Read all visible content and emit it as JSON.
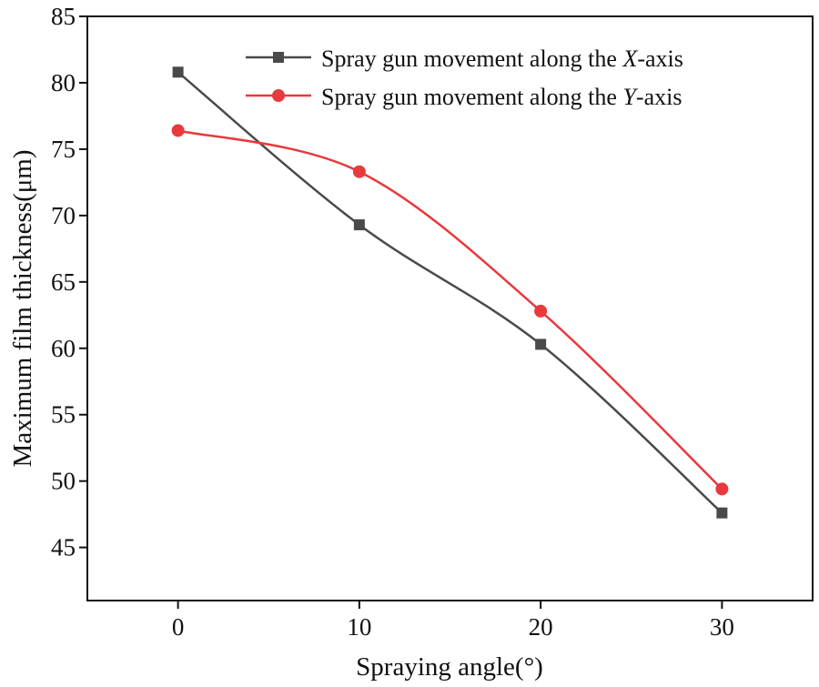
{
  "chart_data": {
    "type": "line",
    "title": "",
    "xlabel": "Spraying angle(°)",
    "ylabel": "Maximum film thickness(μm)",
    "x": [
      0,
      10,
      20,
      30
    ],
    "xlim": [
      -5,
      35
    ],
    "ylim": [
      41,
      85
    ],
    "xticks": [
      0,
      10,
      20,
      30
    ],
    "yticks": [
      45,
      50,
      55,
      60,
      65,
      70,
      75,
      80,
      85
    ],
    "grid": false,
    "legend_position": "top-right",
    "series": [
      {
        "name": "Spray gun movement along the X-axis",
        "legend_prefix": "Spray gun movement along the ",
        "legend_italic": "X",
        "legend_suffix": "-axis",
        "marker": "square",
        "color": "#4a4a4a",
        "values": [
          80.8,
          69.3,
          60.3,
          47.6
        ]
      },
      {
        "name": "Spray gun movement along the Y-axis",
        "legend_prefix": "Spray gun movement along the ",
        "legend_italic": "Y",
        "legend_suffix": "-axis",
        "marker": "circle",
        "color": "#e8393c",
        "values": [
          76.4,
          73.3,
          62.8,
          49.4
        ]
      }
    ]
  }
}
